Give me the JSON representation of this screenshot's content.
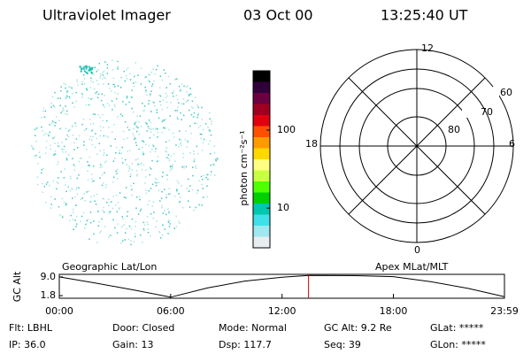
{
  "header": {
    "instrument": "Ultraviolet Imager",
    "date": "03 Oct 00",
    "time": "13:25:40 UT"
  },
  "colorbar": {
    "label": "photon cm⁻²s⁻¹",
    "log": true,
    "lim": [
      3.1,
      575
    ],
    "ticks": [
      10,
      100
    ],
    "colors": [
      "#000000",
      "#30003a",
      "#6a0040",
      "#a00020",
      "#e00010",
      "#ff5000",
      "#ff9a00",
      "#ffd800",
      "#ffff80",
      "#c8ff40",
      "#50ff00",
      "#00d000",
      "#00c8b0",
      "#40e0e8",
      "#a0e8f0",
      "#e8eef0"
    ]
  },
  "polar": {
    "mlt_labels": [
      "12",
      "6",
      "0",
      "18"
    ],
    "lat_labels": [
      "60",
      "70",
      "80"
    ]
  },
  "timeline": {
    "left_title": "Geographic Lat/Lon",
    "right_title": "Apex MLat/MLT",
    "y_label": "GC Alt",
    "ylim": [
      0.8,
      10.0
    ],
    "yticks": [
      {
        "value": 9.0,
        "label": "9.0"
      },
      {
        "value": 1.8,
        "label": "1.8"
      }
    ],
    "xlim": [
      0,
      23.983
    ],
    "xticks": [
      {
        "value": 0,
        "label": "00:00"
      },
      {
        "value": 6,
        "label": "06:00"
      },
      {
        "value": 12,
        "label": "12:00"
      },
      {
        "value": 18,
        "label": "18:00"
      },
      {
        "value": 23.983,
        "label": "23:59"
      }
    ],
    "x": [
      0,
      2,
      4,
      6,
      8,
      10,
      12,
      13.43,
      16,
      18,
      20,
      22,
      23.983
    ],
    "y": [
      9.0,
      6.6,
      4.0,
      1.2,
      4.8,
      7.4,
      8.9,
      9.6,
      9.5,
      9.1,
      7.2,
      4.6,
      1.4
    ],
    "marker": 13.428,
    "marker_color": "#cc0000"
  },
  "status": {
    "rows": [
      [
        "Flt: LBHL",
        "Door: Closed",
        "Mode: Normal",
        "GC Alt: 9.2 Re",
        "GLat: *****"
      ],
      [
        "IP: 36.0",
        "Gain: 13",
        "Dsp:  117.7",
        "Seq: 39",
        "GLon: *****"
      ]
    ]
  }
}
